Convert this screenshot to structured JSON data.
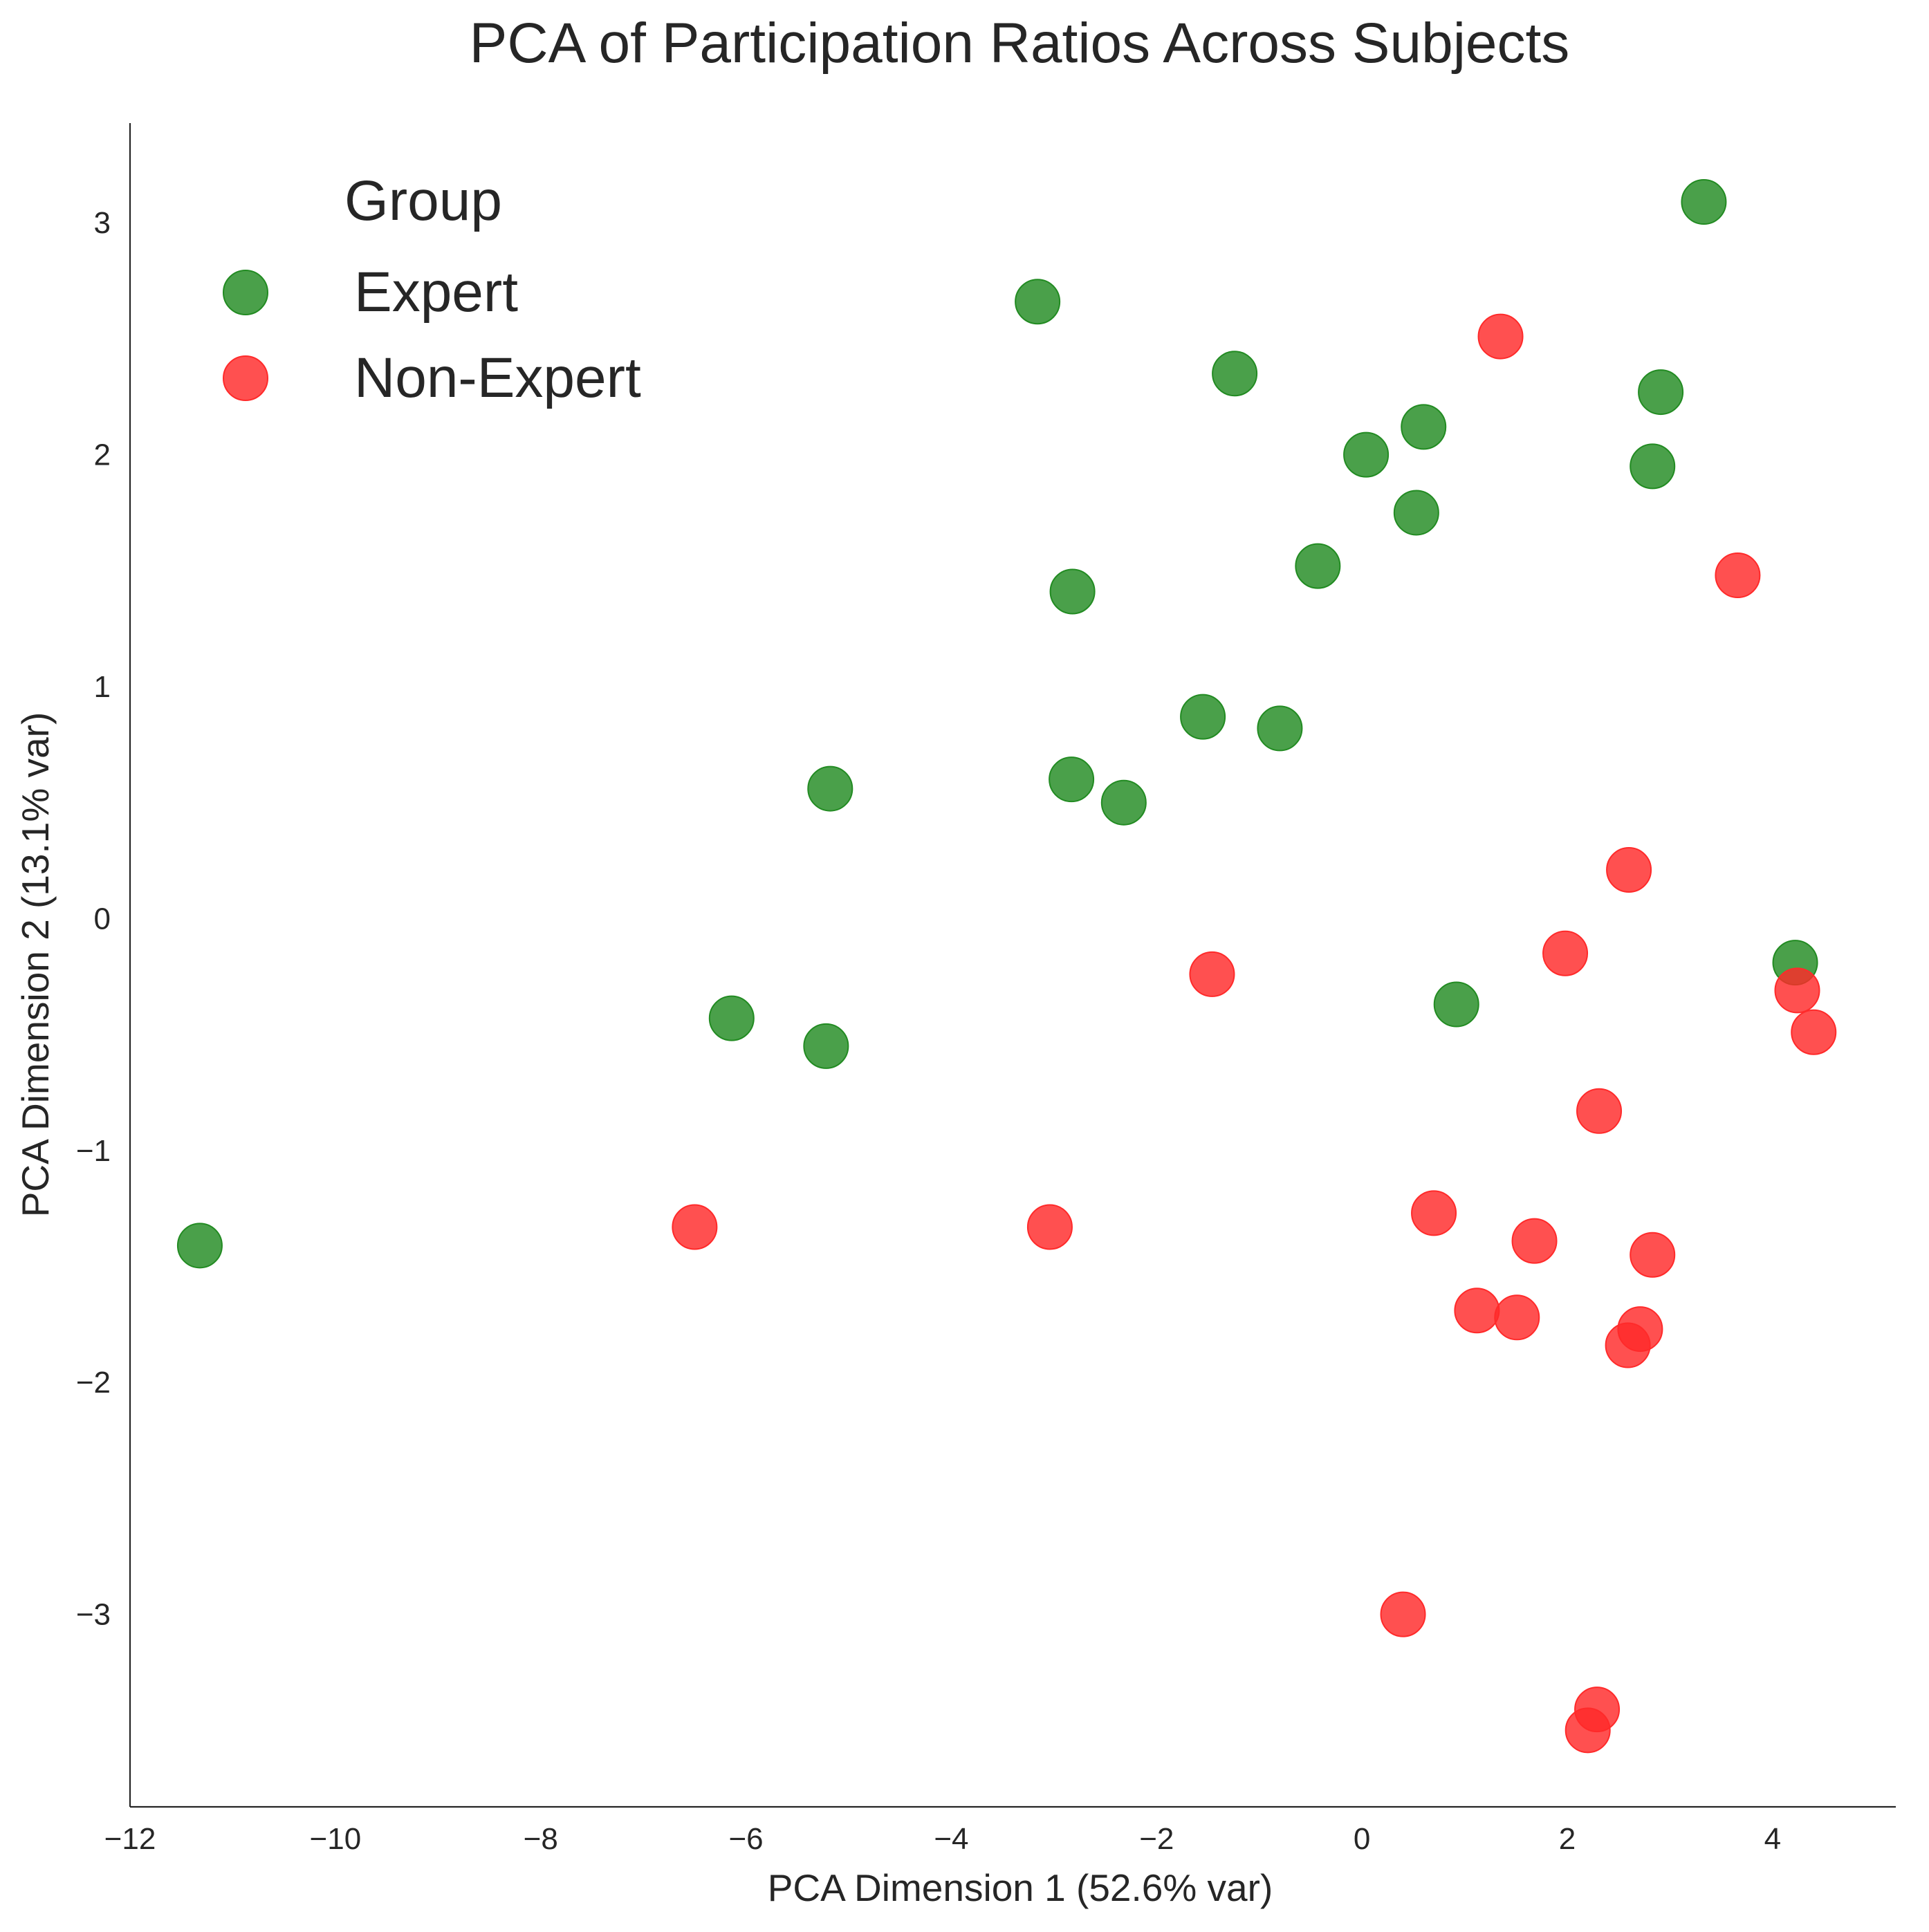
{
  "chart_data": {
    "type": "scatter",
    "title": "PCA of Participation Ratios Across Subjects",
    "xlabel": "PCA Dimension 1 (52.6% var)",
    "ylabel": "PCA Dimension 2 (13.1% var)",
    "xlim": [
      -12,
      5.2
    ],
    "ylim": [
      -3.83,
      3.43
    ],
    "xticks": [
      -12,
      -10,
      -8,
      -6,
      -4,
      -2,
      0,
      2,
      4
    ],
    "xtick_labels": [
      "−12",
      "−10",
      "−8",
      "−6",
      "−4",
      "−2",
      "0",
      "2",
      "4"
    ],
    "yticks": [
      -3,
      -2,
      -1,
      0,
      1,
      2,
      3
    ],
    "ytick_labels": [
      "−3",
      "−2",
      "−1",
      "0",
      "1",
      "2",
      "3"
    ],
    "grid": false,
    "legend": {
      "title": "Group",
      "position": "top-left"
    },
    "series": [
      {
        "name": "Expert",
        "color": "#228B22",
        "points": [
          [
            3.33,
            3.09
          ],
          [
            -3.16,
            2.66
          ],
          [
            -1.24,
            2.35
          ],
          [
            2.91,
            2.27
          ],
          [
            0.6,
            2.12
          ],
          [
            0.04,
            2.0
          ],
          [
            2.83,
            1.95
          ],
          [
            0.53,
            1.75
          ],
          [
            -0.43,
            1.52
          ],
          [
            -2.82,
            1.41
          ],
          [
            -1.55,
            0.87
          ],
          [
            -0.8,
            0.82
          ],
          [
            -5.18,
            0.56
          ],
          [
            -2.83,
            0.6
          ],
          [
            -2.32,
            0.5
          ],
          [
            4.22,
            -0.19
          ],
          [
            0.92,
            -0.37
          ],
          [
            -6.14,
            -0.43
          ],
          [
            -5.22,
            -0.55
          ],
          [
            -11.32,
            -1.41
          ]
        ]
      },
      {
        "name": "Non-Expert",
        "color": "#FF2A2A",
        "points": [
          [
            1.35,
            2.51
          ],
          [
            3.66,
            1.48
          ],
          [
            2.6,
            0.21
          ],
          [
            1.98,
            -0.15
          ],
          [
            -1.46,
            -0.24
          ],
          [
            4.24,
            -0.31
          ],
          [
            4.4,
            -0.49
          ],
          [
            2.31,
            -0.83
          ],
          [
            0.7,
            -1.27
          ],
          [
            -6.5,
            -1.33
          ],
          [
            -3.04,
            -1.33
          ],
          [
            1.68,
            -1.39
          ],
          [
            2.83,
            -1.45
          ],
          [
            1.12,
            -1.69
          ],
          [
            1.51,
            -1.72
          ],
          [
            2.71,
            -1.77
          ],
          [
            2.59,
            -1.84
          ],
          [
            0.4,
            -3.0
          ],
          [
            2.29,
            -3.41
          ],
          [
            2.2,
            -3.5
          ]
        ]
      }
    ]
  }
}
